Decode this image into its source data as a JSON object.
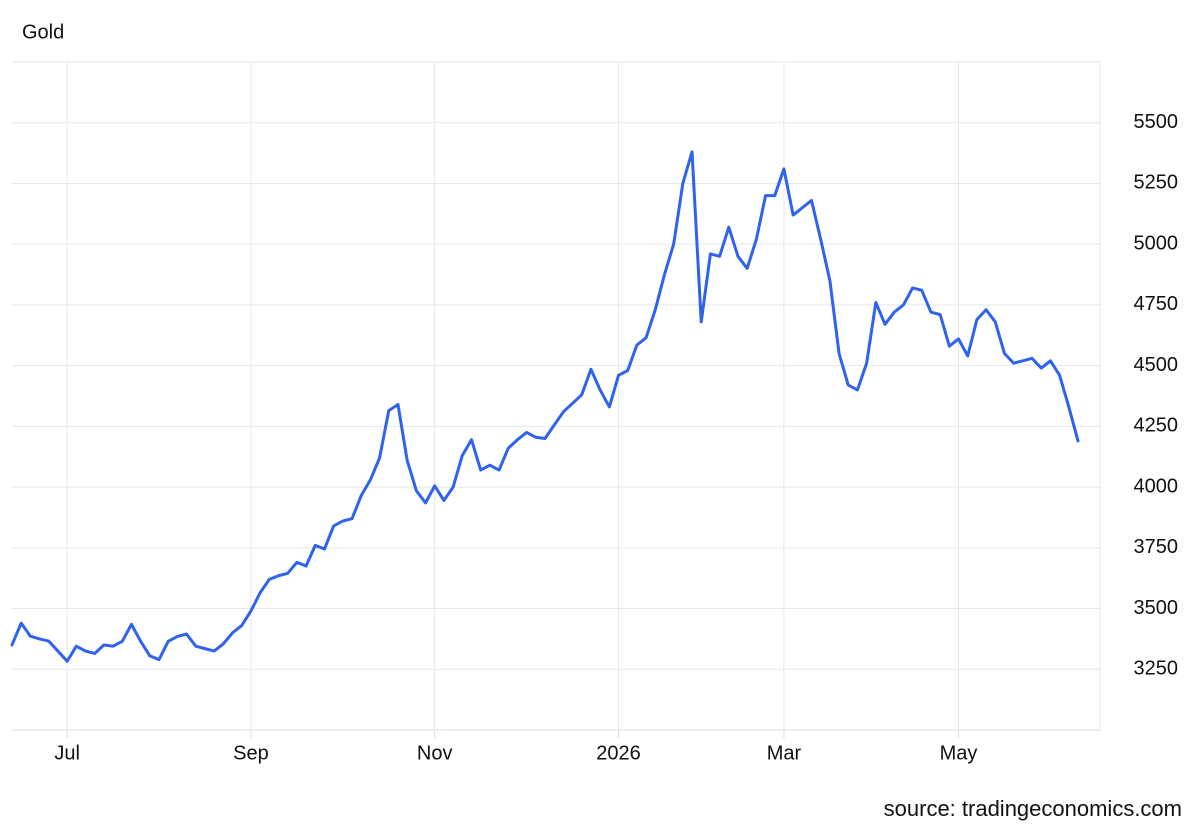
{
  "chart_data": {
    "type": "line",
    "title": "Gold",
    "source": "source: tradingeconomics.com",
    "color": "#2f63ee",
    "categories": [
      null,
      null,
      null,
      null,
      null,
      null,
      "Jul",
      null,
      null,
      null,
      null,
      null,
      null,
      null,
      null,
      null,
      null,
      null,
      null,
      null,
      null,
      null,
      null,
      null,
      null,
      null,
      "Sep",
      null,
      null,
      null,
      null,
      null,
      null,
      null,
      null,
      null,
      null,
      null,
      null,
      null,
      null,
      null,
      null,
      null,
      null,
      null,
      "Nov",
      null,
      null,
      null,
      null,
      null,
      null,
      null,
      null,
      null,
      null,
      null,
      null,
      null,
      null,
      null,
      null,
      null,
      null,
      null,
      "2026",
      null,
      null,
      null,
      null,
      null,
      null,
      null,
      null,
      null,
      null,
      null,
      null,
      null,
      null,
      null,
      null,
      null,
      "Mar",
      null,
      null,
      null,
      null,
      null,
      null,
      null,
      null,
      null,
      null,
      null,
      null,
      null,
      null,
      null,
      null,
      null,
      null,
      "May",
      null,
      null,
      null,
      null,
      null,
      null,
      null,
      null,
      null,
      null,
      null,
      null,
      null
    ],
    "values": [
      3350,
      3440,
      3386,
      3375,
      3366,
      3325,
      3283,
      3345,
      3325,
      3315,
      3350,
      3345,
      3365,
      3435,
      3365,
      3305,
      3290,
      3365,
      3385,
      3395,
      3345,
      3335,
      3325,
      3355,
      3400,
      3430,
      3490,
      3565,
      3620,
      3635,
      3645,
      3690,
      3675,
      3760,
      3745,
      3840,
      3860,
      3870,
      3965,
      4030,
      4120,
      4315,
      4340,
      4110,
      3985,
      3935,
      4005,
      3945,
      4000,
      4130,
      4195,
      4070,
      4090,
      4070,
      4160,
      4195,
      4225,
      4205,
      4200,
      4255,
      4310,
      4345,
      4380,
      4485,
      4400,
      4330,
      4460,
      4480,
      4585,
      4615,
      4730,
      4875,
      5000,
      5250,
      5380,
      4680,
      4960,
      4950,
      5070,
      4950,
      4900,
      5020,
      5200,
      5200,
      5310,
      5120,
      5150,
      5180,
      5020,
      4850,
      4550,
      4420,
      4400,
      4510,
      4760,
      4670,
      4720,
      4750,
      4820,
      4810,
      4720,
      4710,
      4580,
      4610,
      4540,
      4690,
      4730,
      4680,
      4550,
      4510,
      4520,
      4530,
      4490,
      4520,
      4460,
      4330,
      4190
    ],
    "ylim": [
      3000,
      5750
    ],
    "yticks": [
      3250,
      3500,
      3750,
      4000,
      4250,
      4500,
      4750,
      5000,
      5250,
      5500
    ],
    "grid": true,
    "y_axis_side": "right"
  }
}
